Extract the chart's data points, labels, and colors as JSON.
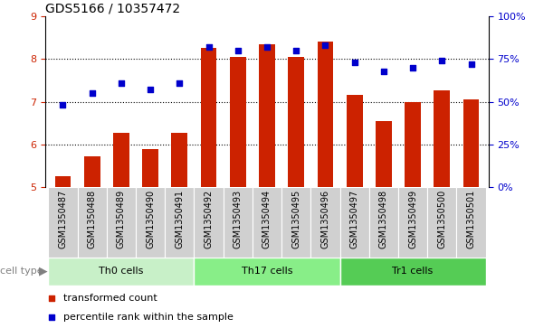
{
  "title": "GDS5166 / 10357472",
  "samples": [
    "GSM1350487",
    "GSM1350488",
    "GSM1350489",
    "GSM1350490",
    "GSM1350491",
    "GSM1350492",
    "GSM1350493",
    "GSM1350494",
    "GSM1350495",
    "GSM1350496",
    "GSM1350497",
    "GSM1350498",
    "GSM1350499",
    "GSM1350500",
    "GSM1350501"
  ],
  "transformed_count": [
    5.25,
    5.72,
    6.27,
    5.88,
    6.27,
    8.27,
    8.06,
    8.35,
    8.05,
    8.42,
    7.15,
    6.55,
    7.0,
    7.27,
    7.06
  ],
  "percentile_rank": [
    48,
    55,
    61,
    57,
    61,
    82,
    80,
    82,
    80,
    83,
    73,
    68,
    70,
    74,
    72
  ],
  "groups": [
    {
      "name": "Th0 cells",
      "indices": [
        0,
        1,
        2,
        3,
        4
      ],
      "color": "#c8f0c8"
    },
    {
      "name": "Th17 cells",
      "indices": [
        5,
        6,
        7,
        8,
        9
      ],
      "color": "#88ee88"
    },
    {
      "name": "Tr1 cells",
      "indices": [
        10,
        11,
        12,
        13,
        14
      ],
      "color": "#55cc55"
    }
  ],
  "ylim_left": [
    5,
    9
  ],
  "ylim_right": [
    0,
    100
  ],
  "yticks_left": [
    5,
    6,
    7,
    8,
    9
  ],
  "yticks_right": [
    0,
    25,
    50,
    75,
    100
  ],
  "yticklabels_right": [
    "0%",
    "25%",
    "50%",
    "75%",
    "100%"
  ],
  "grid_lines": [
    6,
    7,
    8
  ],
  "bar_color": "#cc2200",
  "dot_color": "#0000cc",
  "bar_width": 0.55,
  "xtick_bg": "#d0d0d0",
  "plot_bg": "#ffffff",
  "cell_type_label": "cell type",
  "legend_transformed": "transformed count",
  "legend_percentile": "percentile rank within the sample",
  "title_fontsize": 10,
  "axis_fontsize": 8,
  "label_fontsize": 7,
  "legend_fontsize": 8
}
